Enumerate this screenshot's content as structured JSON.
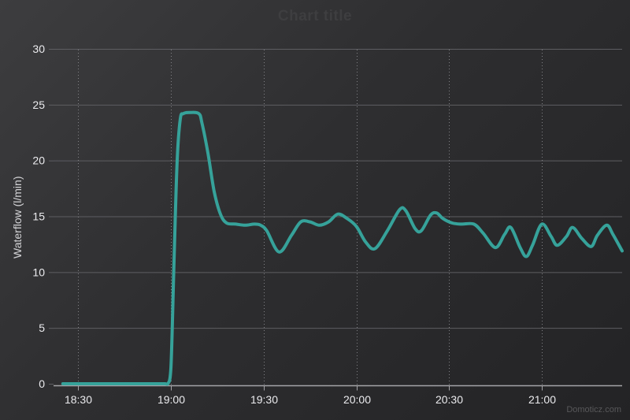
{
  "chart": {
    "title": "Chart title",
    "credit": "Domoticz.com"
  },
  "colors": {
    "background_start": "#3d3d3f",
    "background_end": "#232325",
    "series": "#36a29a",
    "gridline_h": "#5e5e62",
    "gridline_v_dotted": "#828286",
    "axis_line": "#a4a4a8",
    "tick_label": "#ebebee",
    "axis_title": "#d4d4d7",
    "chart_title": "#3e3e40",
    "credit": "#58585a"
  },
  "chart_data": {
    "type": "line",
    "title": "Chart title",
    "xlabel": "",
    "ylabel": "Waterflow (l/min)",
    "ylim": [
      0,
      30
    ],
    "yticks": [
      0,
      5,
      10,
      15,
      20,
      25,
      30
    ],
    "xticks": [
      "18:30",
      "19:00",
      "19:30",
      "20:00",
      "20:30",
      "21:00"
    ],
    "x_range": [
      "18:22",
      "21:26"
    ],
    "grid": {
      "horizontal": "solid",
      "vertical": "dotted"
    },
    "legend": "none",
    "series": [
      {
        "name": "Waterflow",
        "color": "#36a29a",
        "width": 4,
        "points": [
          [
            "18:25",
            0
          ],
          [
            "18:32",
            0
          ],
          [
            "18:40",
            0
          ],
          [
            "18:48",
            0
          ],
          [
            "18:55",
            0
          ],
          [
            "18:58",
            0
          ],
          [
            "18:59",
            0
          ],
          [
            "19:00",
            1.5
          ],
          [
            "19:01",
            11
          ],
          [
            "19:02",
            20
          ],
          [
            "19:03",
            23.7
          ],
          [
            "19:04",
            24.2
          ],
          [
            "19:06",
            24.3
          ],
          [
            "19:09",
            24.2
          ],
          [
            "19:10",
            23.4
          ],
          [
            "19:12",
            20.6
          ],
          [
            "19:14",
            17.2
          ],
          [
            "19:16",
            15.2
          ],
          [
            "19:18",
            14.4
          ],
          [
            "19:21",
            14.3
          ],
          [
            "19:24",
            14.2
          ],
          [
            "19:27",
            14.3
          ],
          [
            "19:29",
            14.2
          ],
          [
            "19:31",
            13.7
          ],
          [
            "19:35",
            11.8
          ],
          [
            "19:39",
            13.3
          ],
          [
            "19:42",
            14.5
          ],
          [
            "19:45",
            14.5
          ],
          [
            "19:48",
            14.2
          ],
          [
            "19:51",
            14.5
          ],
          [
            "19:54",
            15.2
          ],
          [
            "19:57",
            14.8
          ],
          [
            "20:00",
            14.1
          ],
          [
            "20:03",
            12.7
          ],
          [
            "20:06",
            12.1
          ],
          [
            "20:10",
            13.7
          ],
          [
            "20:14",
            15.6
          ],
          [
            "20:16",
            15.5
          ],
          [
            "20:19",
            13.9
          ],
          [
            "20:21",
            13.7
          ],
          [
            "20:24",
            15.1
          ],
          [
            "20:26",
            15.3
          ],
          [
            "20:28",
            14.8
          ],
          [
            "20:31",
            14.4
          ],
          [
            "20:34",
            14.3
          ],
          [
            "20:38",
            14.3
          ],
          [
            "20:41",
            13.5
          ],
          [
            "20:45",
            12.2
          ],
          [
            "20:48",
            13.4
          ],
          [
            "20:50",
            14.0
          ],
          [
            "20:53",
            12.2
          ],
          [
            "20:55",
            11.4
          ],
          [
            "20:57",
            12.4
          ],
          [
            "21:00",
            14.3
          ],
          [
            "21:03",
            13.2
          ],
          [
            "21:05",
            12.4
          ],
          [
            "21:08",
            13.2
          ],
          [
            "21:10",
            14.0
          ],
          [
            "21:13",
            13.0
          ],
          [
            "21:16",
            12.3
          ],
          [
            "21:18",
            13.3
          ],
          [
            "21:21",
            14.2
          ],
          [
            "21:23",
            13.4
          ],
          [
            "21:26",
            11.9
          ]
        ]
      }
    ]
  }
}
